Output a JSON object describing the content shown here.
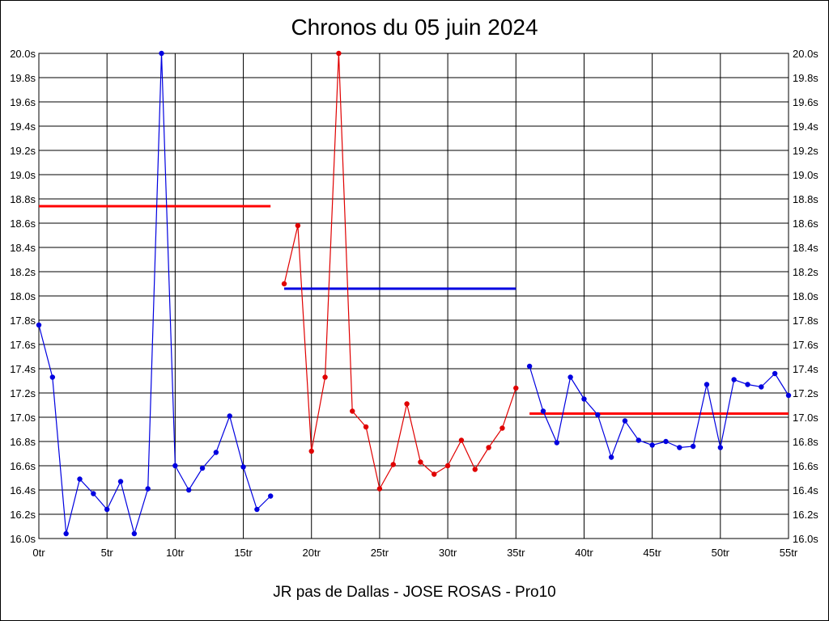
{
  "chart_data": {
    "type": "line",
    "title": "Chronos du 05 juin 2024",
    "footer": "JR pas de Dallas - JOSE ROSAS - Pro10",
    "xlim": [
      0,
      55
    ],
    "ylim": [
      16.0,
      20.0
    ],
    "x_ticks": [
      "0tr",
      "5tr",
      "10tr",
      "15tr",
      "20tr",
      "25tr",
      "30tr",
      "35tr",
      "40tr",
      "45tr",
      "50tr",
      "55tr"
    ],
    "y_ticks": [
      "16.0s",
      "16.2s",
      "16.4s",
      "16.6s",
      "16.8s",
      "17.0s",
      "17.2s",
      "17.4s",
      "17.6s",
      "17.8s",
      "18.0s",
      "18.2s",
      "18.4s",
      "18.6s",
      "18.8s",
      "19.0s",
      "19.2s",
      "19.4s",
      "19.6s",
      "19.8s",
      "20.0s"
    ],
    "grid": true,
    "series": [
      {
        "color": "#0000e0",
        "x": [
          0,
          1,
          2,
          3,
          4,
          5,
          6,
          7,
          8,
          9,
          10,
          11,
          12,
          13,
          14,
          15,
          16,
          17
        ],
        "y": [
          17.76,
          17.33,
          16.04,
          16.49,
          16.37,
          16.24,
          16.47,
          16.04,
          16.41,
          20.0,
          16.6,
          16.4,
          16.58,
          16.71,
          17.01,
          16.59,
          16.24,
          16.35
        ]
      },
      {
        "color": "#e00000",
        "x": [
          18,
          19,
          20,
          21,
          22,
          23,
          24,
          25,
          26,
          27,
          28,
          29,
          30,
          31,
          32,
          33,
          34,
          35
        ],
        "y": [
          18.1,
          18.58,
          16.72,
          17.33,
          20.0,
          17.05,
          16.92,
          16.41,
          16.61,
          17.11,
          16.63,
          16.53,
          16.6,
          16.81,
          16.57,
          16.75,
          16.91,
          17.24
        ]
      },
      {
        "color": "#0000e0",
        "x": [
          36,
          37,
          38,
          39,
          40,
          41,
          42,
          43,
          44,
          45,
          46,
          47,
          48,
          49,
          50,
          51,
          52,
          53,
          54,
          55
        ],
        "y": [
          17.42,
          17.05,
          16.79,
          17.33,
          17.15,
          17.02,
          16.67,
          16.97,
          16.81,
          16.77,
          16.8,
          16.75,
          16.76,
          17.27,
          16.75,
          17.31,
          17.27,
          17.25,
          17.36,
          17.18
        ]
      }
    ],
    "averages": [
      {
        "color": "#ff0000",
        "x_start": 0,
        "x_end": 17,
        "y": 18.74
      },
      {
        "color": "#0000e0",
        "x_start": 18,
        "x_end": 35,
        "y": 18.06
      },
      {
        "color": "#ff0000",
        "x_start": 36,
        "x_end": 55,
        "y": 17.03
      }
    ]
  }
}
